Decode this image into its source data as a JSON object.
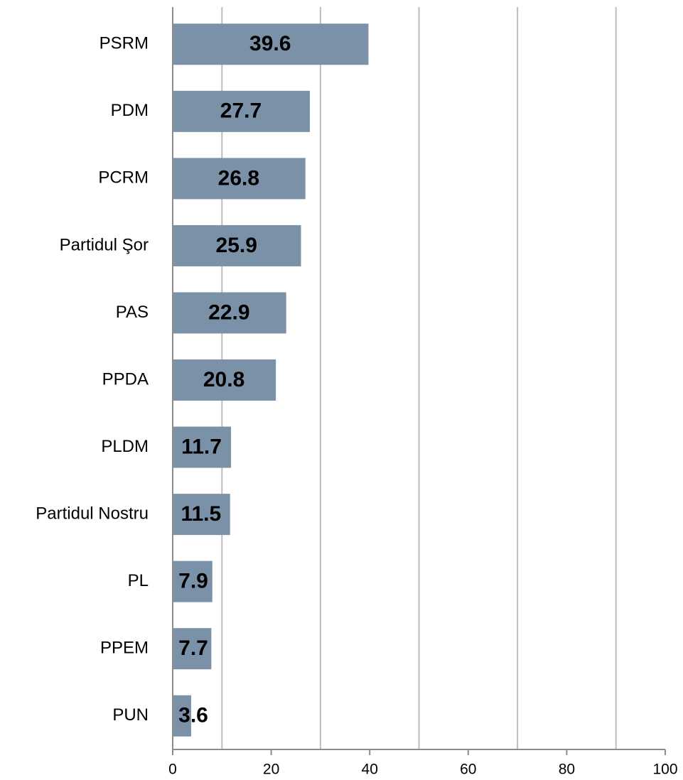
{
  "chart_data": {
    "type": "bar",
    "orientation": "horizontal",
    "categories": [
      "PSRM",
      "PDM",
      "PCRM",
      "Partidul Şor",
      "PAS",
      "PPDA",
      "PLDM",
      "Partidul Nostru",
      "PL",
      "PPEM",
      "PUN"
    ],
    "values": [
      39.6,
      27.7,
      26.8,
      25.9,
      22.9,
      20.8,
      11.7,
      11.5,
      7.9,
      7.7,
      3.6
    ],
    "color": "#7a91a8",
    "xlim": [
      0,
      100
    ],
    "xticks": [
      0,
      20,
      40,
      60,
      80,
      100
    ],
    "grid_lines": [
      10,
      30,
      50,
      70,
      90
    ],
    "grid": true
  }
}
